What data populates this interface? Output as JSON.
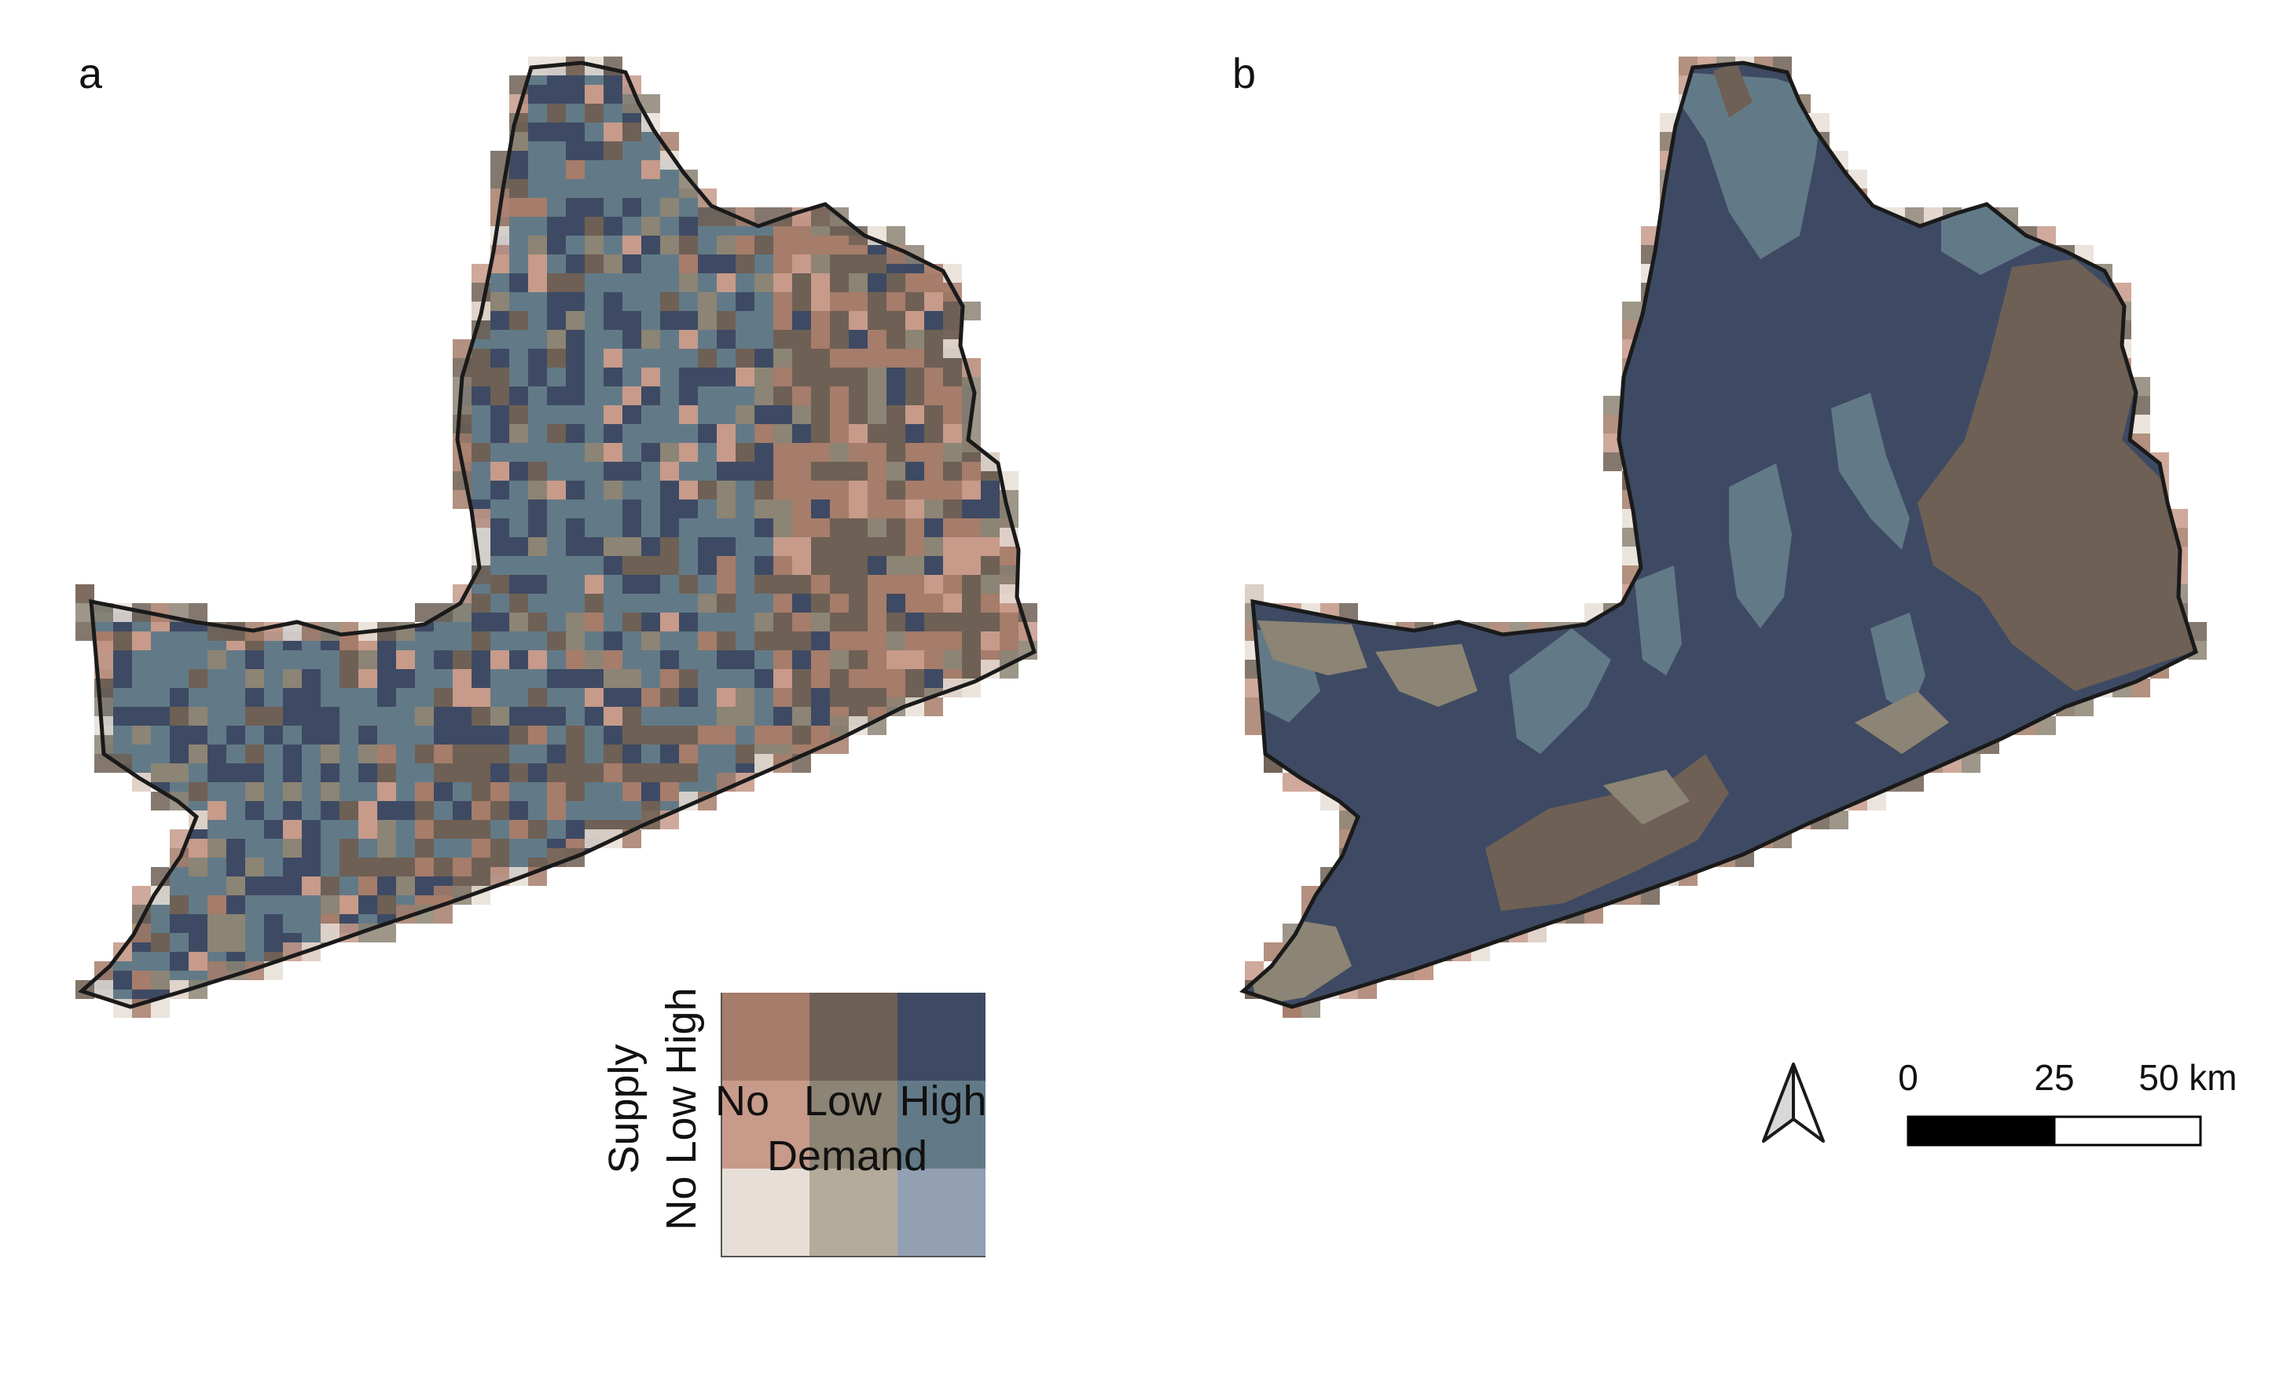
{
  "panels": [
    {
      "label": "a"
    },
    {
      "label": "b"
    }
  ],
  "legend": {
    "y_title": "Supply",
    "y_classes": "No Low High",
    "x_title": "Demand",
    "x_classes": [
      "No",
      "Low",
      "High"
    ],
    "cells": [
      {
        "supply": "High",
        "demand": "No",
        "color": "#a67c6a"
      },
      {
        "supply": "High",
        "demand": "Low",
        "color": "#6e6055"
      },
      {
        "supply": "High",
        "demand": "High",
        "color": "#3e4a63"
      },
      {
        "supply": "Low",
        "demand": "No",
        "color": "#c79a8a"
      },
      {
        "supply": "Low",
        "demand": "Low",
        "color": "#8c8474"
      },
      {
        "supply": "Low",
        "demand": "High",
        "color": "#627a87"
      },
      {
        "supply": "No",
        "demand": "No",
        "color": "#e7dfd7"
      },
      {
        "supply": "No",
        "demand": "Low",
        "color": "#b5ab9a"
      },
      {
        "supply": "No",
        "demand": "High",
        "color": "#93a0b3"
      }
    ]
  },
  "scale_bar": {
    "ticks": [
      "0",
      "25",
      "50 km"
    ]
  },
  "north_arrow": {
    "icon": "north-arrow-icon"
  },
  "colors": {
    "boundary": "#1a1a1a",
    "high_high": "#3e4a63",
    "low_high": "#627a87",
    "high_low": "#6e6055",
    "high_no": "#a67c6a",
    "low_no": "#c79a8a",
    "low_low": "#8c8474",
    "no_no": "#e7dfd7"
  }
}
